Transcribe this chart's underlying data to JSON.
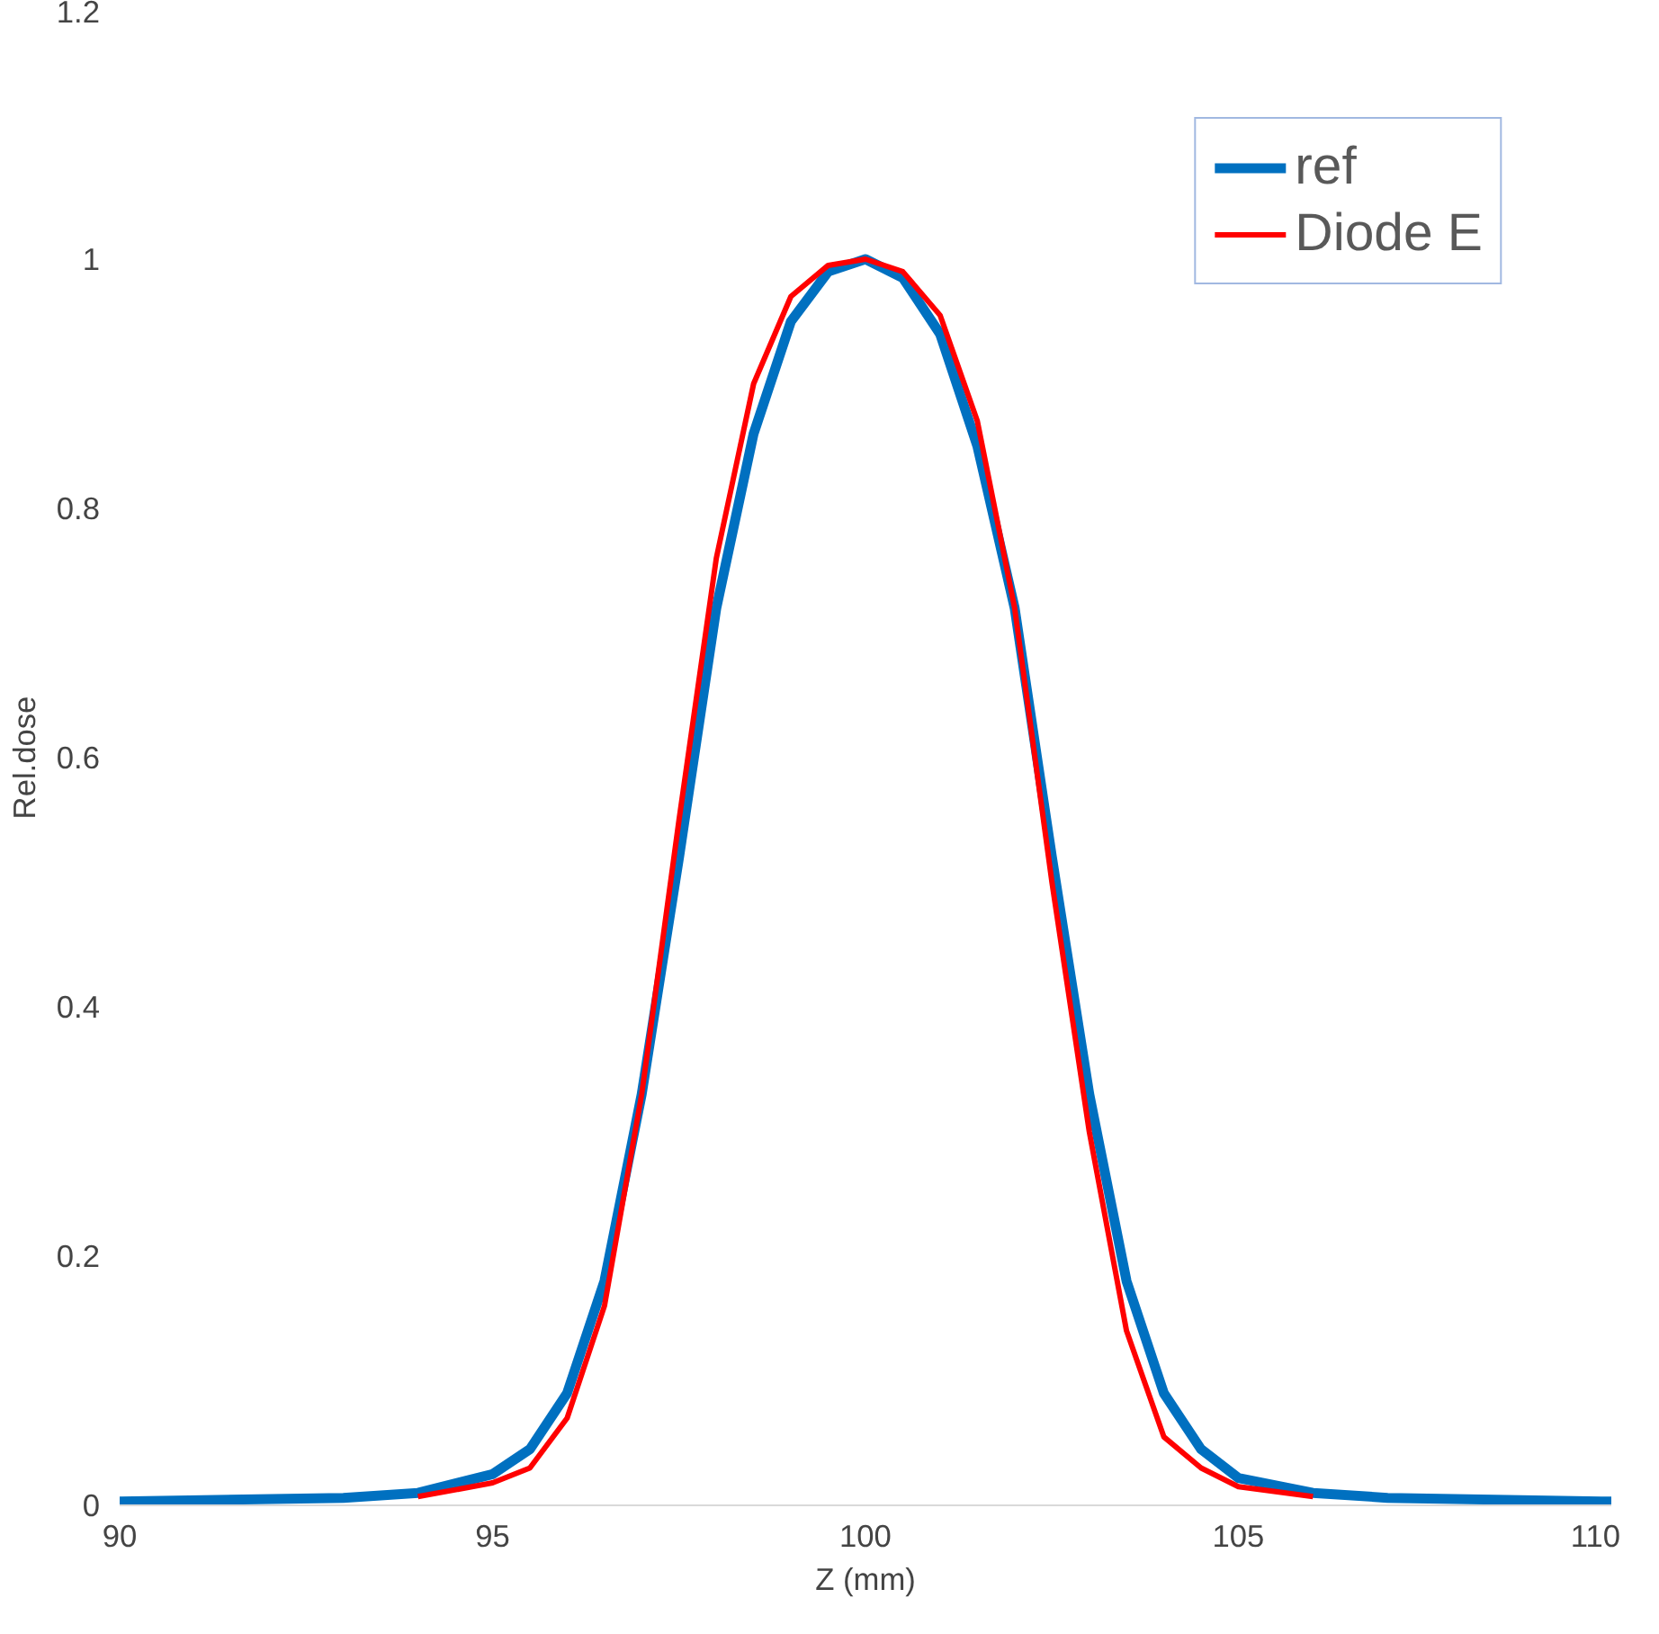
{
  "chart_data": {
    "type": "line",
    "xlabel": "Z (mm)",
    "ylabel": "Rel.dose",
    "xlim": [
      90,
      110
    ],
    "xticks": [
      90,
      95,
      100,
      105,
      110
    ],
    "ylim": [
      0,
      1.2
    ],
    "yticks": [
      0,
      0.2,
      0.4,
      0.6,
      0.8,
      1,
      1.2
    ],
    "grid": false,
    "legend": "top right",
    "marker": "none",
    "line_style": "solid",
    "series": [
      {
        "name": "ref",
        "color": "#0070c0",
        "x": [
          90,
          93,
          94,
          95,
          95.5,
          96,
          96.5,
          97,
          97.5,
          98,
          98.5,
          99,
          99.5,
          100,
          100.5,
          101,
          101.5,
          102,
          102.5,
          103,
          103.5,
          104,
          104.5,
          105,
          106,
          107,
          110
        ],
        "values": [
          0.003,
          0.006,
          0.01,
          0.025,
          0.045,
          0.09,
          0.18,
          0.33,
          0.52,
          0.72,
          0.86,
          0.95,
          0.99,
          1.0,
          0.985,
          0.94,
          0.85,
          0.72,
          0.52,
          0.33,
          0.18,
          0.09,
          0.045,
          0.022,
          0.01,
          0.006,
          0.003
        ]
      },
      {
        "name": "Diode E",
        "color": "#ff0000",
        "x": [
          94,
          95,
          95.5,
          96,
          96.5,
          97,
          97.5,
          98,
          98.5,
          99,
          99.5,
          100,
          100.5,
          101,
          101.5,
          102,
          102.5,
          103,
          103.5,
          104,
          104.5,
          105,
          106
        ],
        "values": [
          0.007,
          0.018,
          0.03,
          0.07,
          0.16,
          0.33,
          0.55,
          0.76,
          0.9,
          0.97,
          0.995,
          1.0,
          0.99,
          0.955,
          0.87,
          0.72,
          0.5,
          0.3,
          0.14,
          0.055,
          0.03,
          0.015,
          0.007
        ]
      }
    ]
  }
}
